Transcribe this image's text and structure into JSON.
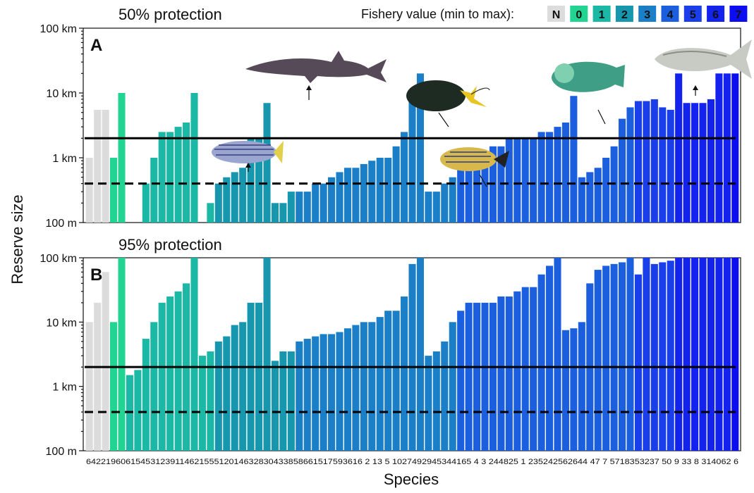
{
  "colors": {
    "N": "#dcdcdc",
    "0": "#22d491",
    "1": "#1bb8a6",
    "2": "#1697ad",
    "3": "#1a7fc6",
    "4": "#1c5fde",
    "5": "#1a3fea",
    "6": "#1422ee",
    "7": "#0d0df2"
  },
  "legend": {
    "title": "Fishery value (min to max):",
    "items": [
      {
        "label": "N",
        "color": "#dcdcdc"
      },
      {
        "label": "0",
        "color": "#22d491"
      },
      {
        "label": "1",
        "color": "#1bb8a6"
      },
      {
        "label": "2",
        "color": "#1697ad"
      },
      {
        "label": "3",
        "color": "#1a7fc6"
      },
      {
        "label": "4",
        "color": "#1c5fde"
      },
      {
        "label": "5",
        "color": "#1a3fea"
      },
      {
        "label": "6",
        "color": "#1422ee"
      },
      {
        "label": "7",
        "color": "#0d0df2"
      }
    ]
  },
  "chart_data": {
    "type": "bar",
    "ylabel": "Reserve size",
    "xlabel": "Species",
    "scale": "log",
    "x_tick_labels": "64221960615453123911462155512014632830433858661517593616 2 13 5 1027492945344165 4 3 244825 1 235242562644 47 7 5718353237 50 9 33 8 314062 6",
    "categories_group": [
      "N",
      "N",
      "N",
      "0",
      "0",
      "1",
      "1",
      "1",
      "1",
      "1",
      "1",
      "1",
      "1",
      "1",
      "1",
      "1",
      "2",
      "2",
      "2",
      "2",
      "2",
      "2",
      "2",
      "2",
      "2",
      "2",
      "3",
      "3",
      "3",
      "3",
      "3",
      "3",
      "3",
      "3",
      "3",
      "3",
      "3",
      "3",
      "3",
      "3",
      "3",
      "3",
      "3",
      "3",
      "3",
      "3",
      "4",
      "4",
      "4",
      "4",
      "4",
      "4",
      "4",
      "4",
      "4",
      "4",
      "4",
      "4",
      "4",
      "4",
      "4",
      "4",
      "4",
      "4",
      "4",
      "4",
      "4",
      "4",
      "5",
      "5",
      "5",
      "5",
      "5",
      "6",
      "6",
      "6",
      "6",
      "6",
      "6",
      "6",
      "7"
    ],
    "panels": [
      {
        "letter": "A",
        "title": "50% protection",
        "y_tick_labels": [
          "100 m",
          "1 km",
          "10 km",
          "100 km"
        ],
        "ylim_km": [
          0.1,
          100
        ],
        "ref_solid_km": 2,
        "ref_dashed_km": 0.4,
        "values_km": [
          1.0,
          5.5,
          5.5,
          1.0,
          10,
          0.1,
          0.1,
          0.4,
          1.0,
          2.5,
          2.5,
          3.0,
          3.5,
          10,
          0.1,
          0.2,
          0.4,
          0.5,
          0.6,
          0.7,
          2.0,
          2.0,
          7.0,
          0.2,
          0.2,
          0.3,
          0.3,
          0.3,
          0.4,
          0.4,
          0.5,
          0.6,
          0.7,
          0.7,
          0.8,
          0.9,
          1.0,
          1.0,
          1.5,
          2.5,
          10,
          20,
          0.3,
          0.3,
          0.4,
          0.5,
          0.7,
          1.0,
          1.0,
          1.0,
          1.5,
          1.5,
          2.0,
          2.0,
          2.0,
          2.0,
          2.5,
          2.5,
          3.0,
          3.5,
          9.0,
          0.5,
          0.6,
          0.7,
          1.0,
          1.5,
          4.0,
          6.0,
          7.5,
          7.5,
          8.0,
          6.0,
          5.5,
          20,
          7.0,
          7.0,
          7.0,
          8.0,
          20,
          20,
          20
        ]
      },
      {
        "letter": "B",
        "title": "95% protection",
        "y_tick_labels": [
          "100 m",
          "1 km",
          "10 km",
          "100 km"
        ],
        "ylim_km": [
          0.1,
          100
        ],
        "ref_solid_km": 2,
        "ref_dashed_km": 0.4,
        "values_km": [
          10,
          20,
          60,
          10,
          100,
          1.5,
          1.8,
          5.5,
          10,
          20,
          25,
          30,
          40,
          100,
          3,
          3.5,
          5,
          6,
          9,
          10,
          20,
          20,
          100,
          2.5,
          3.5,
          3.5,
          5,
          5.5,
          6,
          6.5,
          6.5,
          7,
          8,
          9,
          10,
          10,
          12,
          15,
          15,
          25,
          80,
          100,
          3,
          3.5,
          5,
          10,
          15,
          20,
          20,
          20,
          20,
          25,
          25,
          30,
          35,
          35,
          55,
          75,
          100,
          7.5,
          8,
          10,
          40,
          65,
          75,
          80,
          85,
          100,
          55,
          100,
          80,
          85,
          90,
          100,
          100,
          100,
          100,
          100,
          100,
          100,
          100
        ]
      }
    ]
  },
  "illustrations": [
    "shark-icon",
    "surgeonfish-icon",
    "snapper-icon",
    "butterflyfish-icon",
    "parrotfish-icon",
    "jack-icon"
  ]
}
